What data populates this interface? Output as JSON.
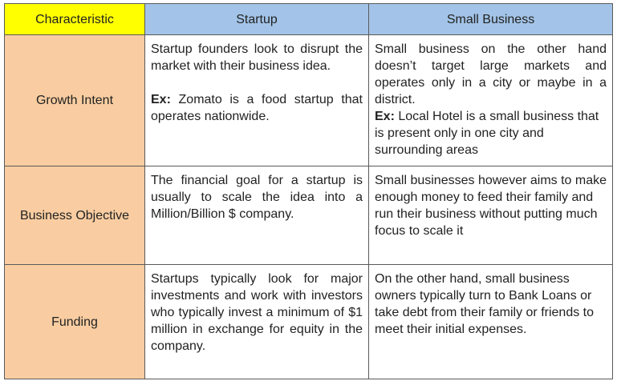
{
  "header": {
    "characteristic": "Characteristic",
    "startup": "Startup",
    "small_business": "Small Business"
  },
  "rows": [
    {
      "label": "Growth Intent",
      "startup": {
        "text": "Startup founders look to disrupt the market with their business idea.",
        "example_prefix": "Ex:",
        "example_text": " Zomato is a food startup that operates nationwide."
      },
      "small_business": {
        "text": "Small business on the other hand doesn’t target large markets and operates only in a city or maybe in a district.",
        "example_prefix": "Ex:",
        "example_text": " Local Hotel is a small business that is present only in one city and surrounding areas"
      }
    },
    {
      "label": "Business Objective",
      "startup": {
        "text": "The financial goal for a startup is usually to scale the idea into a Million/Billion $ company."
      },
      "small_business": {
        "text": "Small businesses however aims to make enough money to feed their family and run their business without putting much focus to scale it"
      }
    },
    {
      "label": "Funding",
      "startup": {
        "text": "Startups typically look for major investments and work with investors who typically invest a minimum of $1 million in exchange for equity in the company."
      },
      "small_business": {
        "text": "On the other hand, small business owners typically turn to Bank Loans or take debt from their family or friends to meet their initial expenses."
      }
    }
  ]
}
